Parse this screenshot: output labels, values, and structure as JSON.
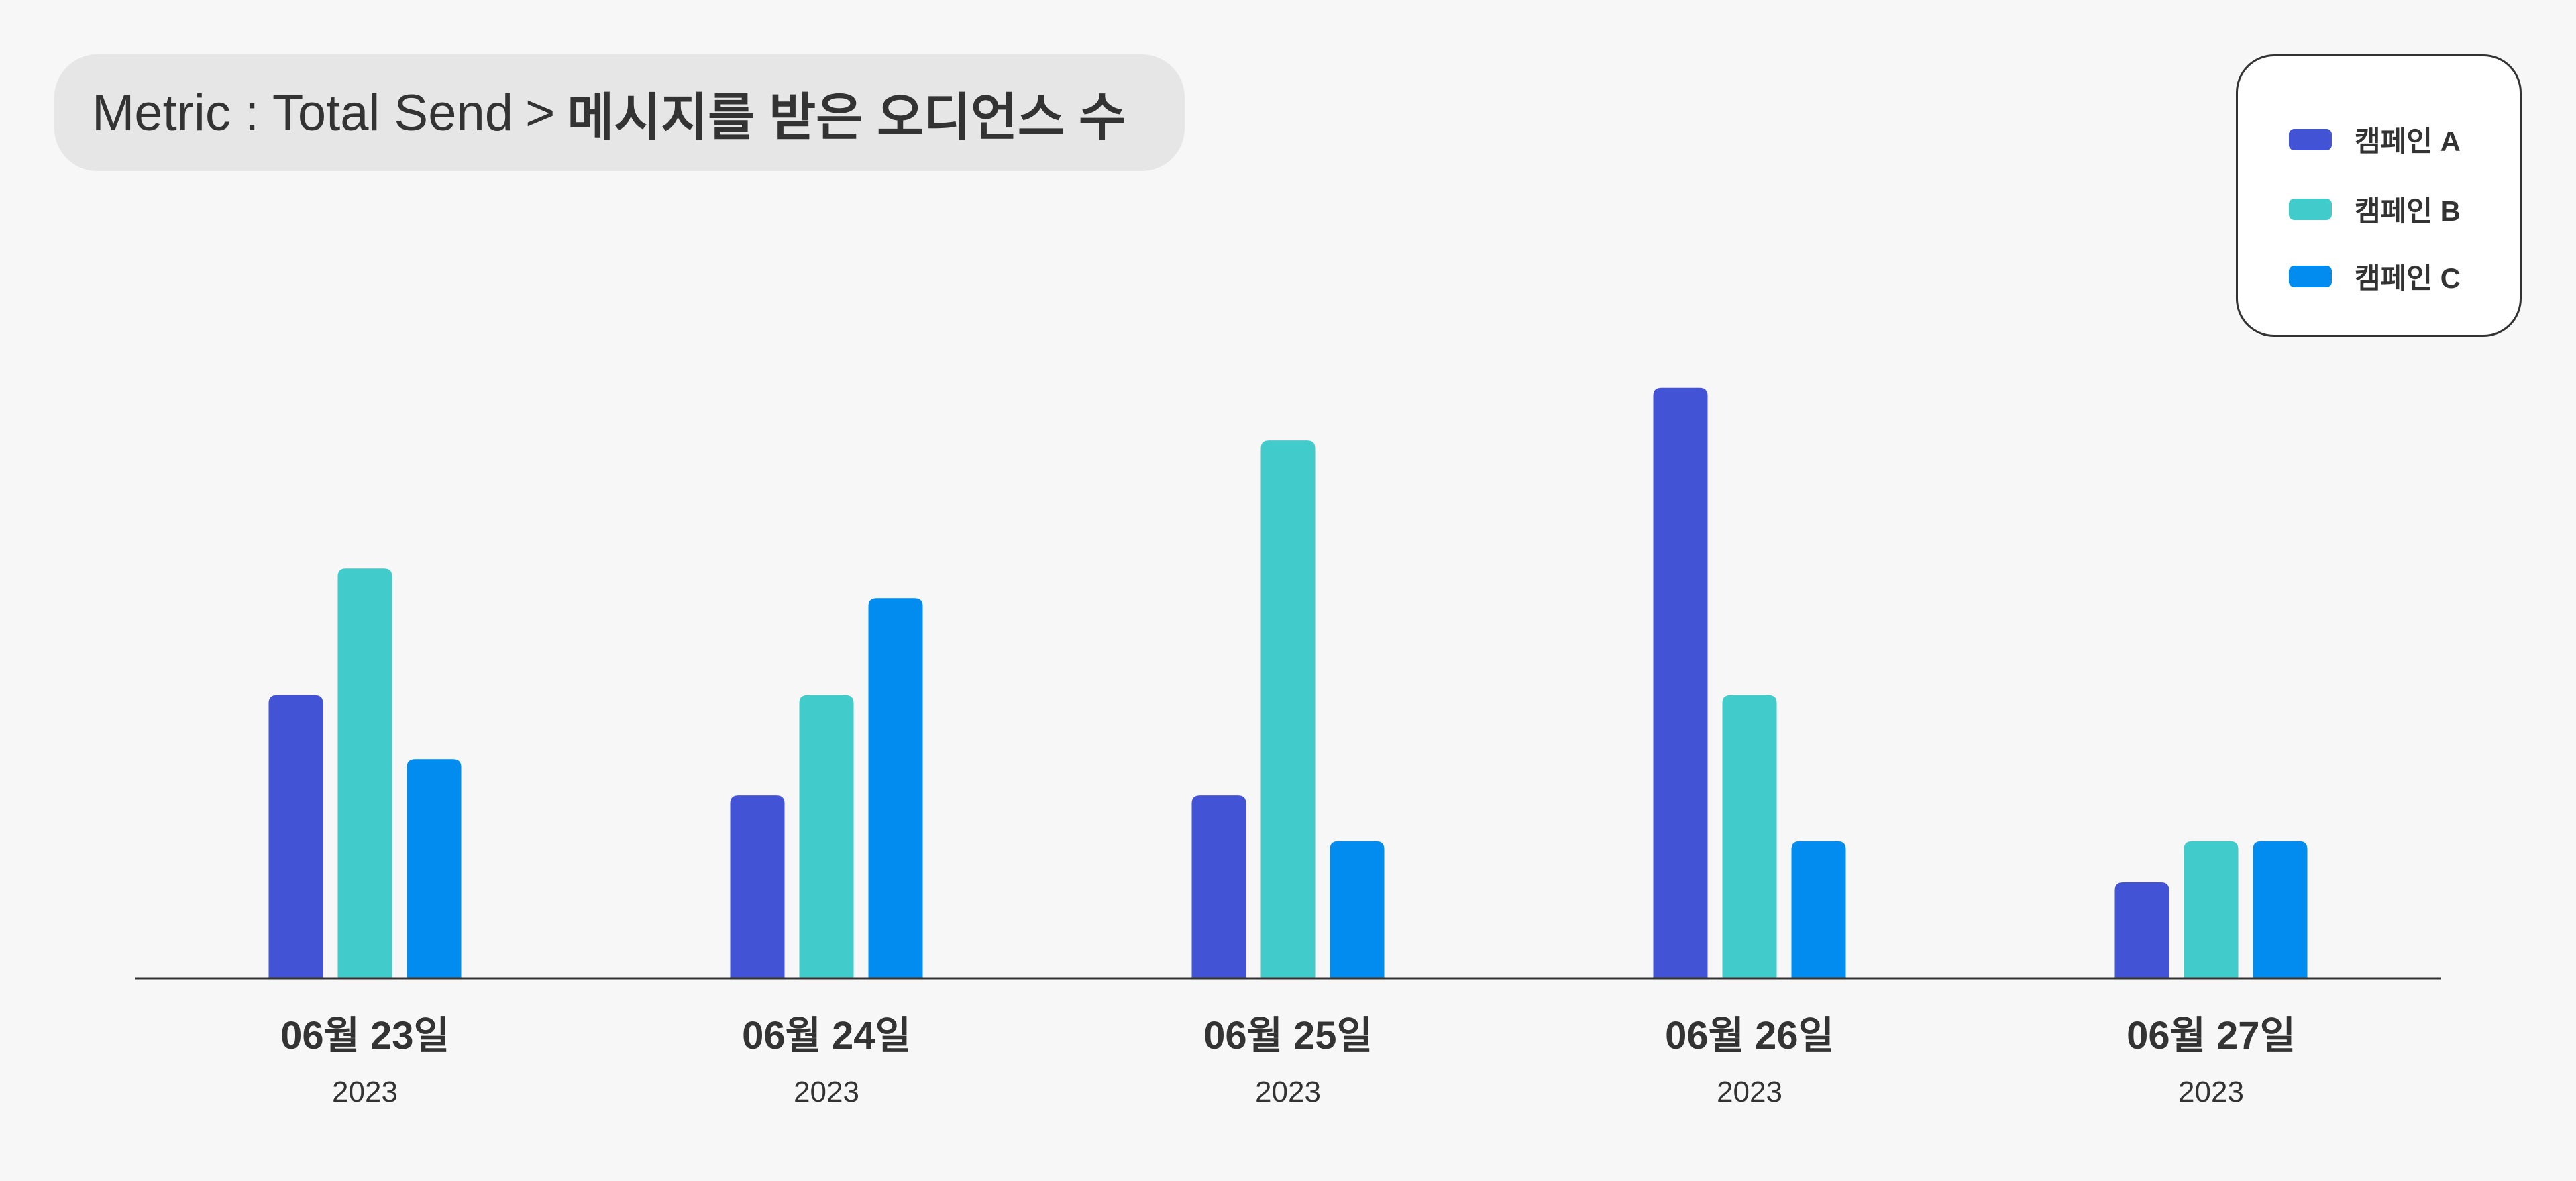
{
  "header": {
    "metric_label": "Metric : Total Send",
    "separator": ">",
    "sub_label": "메시지를 받은 오디언스 수"
  },
  "chart_data": {
    "type": "bar",
    "title": "",
    "xlabel": "",
    "ylabel": "",
    "grid": false,
    "legend_position": "top-right",
    "categories": [
      "06월 23일",
      "06월 24일",
      "06월 25일",
      "06월 26일",
      "06월 27일"
    ],
    "category_sublabels": [
      "2023",
      "2023",
      "2023",
      "2023",
      "2023"
    ],
    "ylim": [
      0,
      380
    ],
    "series": [
      {
        "name": "캠페인 A",
        "color": "#4353D6",
        "values": [
          172,
          111,
          111,
          359,
          58
        ]
      },
      {
        "name": "캠페인 B",
        "color": "#41CCCB",
        "values": [
          249,
          172,
          327,
          172,
          83
        ]
      },
      {
        "name": "캠페인 C",
        "color": "#038CF0",
        "values": [
          133,
          231,
          83,
          83,
          83
        ]
      }
    ]
  }
}
